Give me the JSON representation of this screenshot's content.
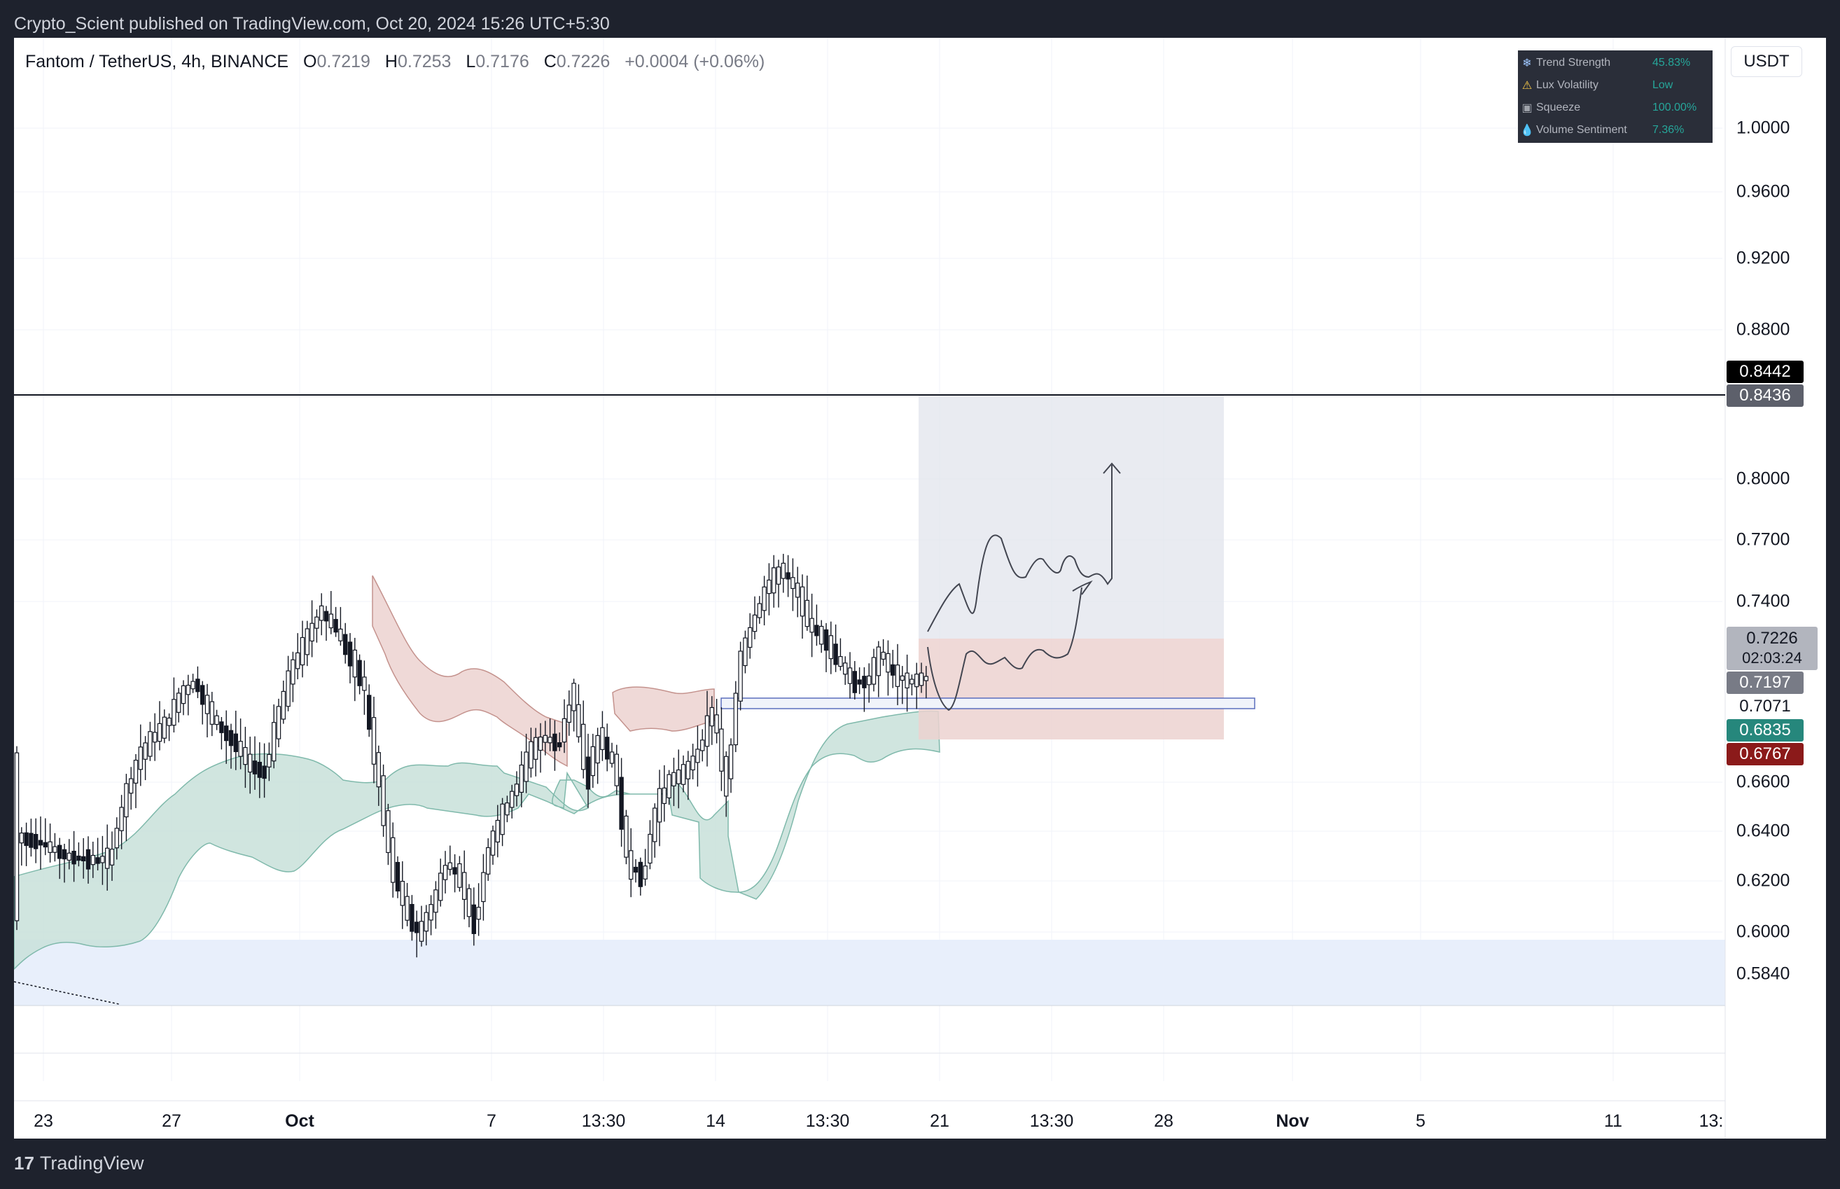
{
  "header": {
    "publish_line": "Crypto_Scient published on TradingView.com, Oct 20, 2024 15:26 UTC+5:30"
  },
  "legend": {
    "symbol": "Fantom / TetherUS, 4h, BINANCE",
    "o_label": "O",
    "o_value": "0.7219",
    "h_label": "H",
    "h_value": "0.7253",
    "l_label": "L",
    "l_value": "0.7176",
    "c_label": "C",
    "c_value": "0.7226",
    "change": "+0.0004 (+0.06%)"
  },
  "currency_button": "USDT",
  "dashboard": {
    "rows": [
      {
        "icon": "snowflake-icon",
        "name": "Trend Strength",
        "value": "45.83%",
        "value_color": "#26a69a"
      },
      {
        "icon": "warning-icon",
        "name": "Lux Volatility",
        "value": "Low",
        "value_color": "#26a69a"
      },
      {
        "icon": "squeeze-icon",
        "name": "Squeeze",
        "value": "100.00%",
        "value_color": "#26a69a"
      },
      {
        "icon": "droplet-icon",
        "name": "Volume Sentiment",
        "value": "7.36%",
        "value_color": "#26a69a"
      }
    ]
  },
  "price_axis": {
    "labels": [
      "1.0000",
      "0.9600",
      "0.9200",
      "0.8800",
      "0.8000",
      "0.7700",
      "0.7400",
      "0.6600",
      "0.6400",
      "0.6200",
      "0.6000",
      "0.5840"
    ],
    "tags": [
      {
        "value": "0.8442",
        "color": "#000000"
      },
      {
        "value": "0.8436",
        "color": "#5d606b"
      },
      {
        "value": "0.7226",
        "sub": "02:03:24",
        "color": "#b2b5be"
      },
      {
        "value": "0.7197",
        "color": "#787b86"
      },
      {
        "value": "0.7071",
        "color": "#ffffff"
      },
      {
        "value": "0.6835",
        "color": "#26877c"
      },
      {
        "value": "0.6767",
        "color": "#8b1a1a"
      }
    ]
  },
  "time_axis": {
    "labels": [
      "23",
      "27",
      "Oct",
      "7",
      "13:30",
      "14",
      "13:30",
      "21",
      "13:30",
      "28",
      "Nov",
      "5",
      "11",
      "13:"
    ]
  },
  "footer": {
    "brand": "TradingView",
    "logo_text": "17"
  },
  "colors": {
    "bull": "#ffffff",
    "bear": "#131722",
    "green_band": "#c8e0d9",
    "red_band": "#ecd2d0",
    "demand_zone": "#e8effb"
  }
}
